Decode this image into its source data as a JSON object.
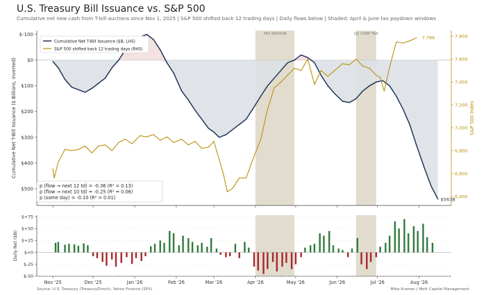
{
  "header": {
    "title": "U.S. Treasury Bill Issuance vs. S&P 500",
    "subtitle": "Cumulative net new cash from T-bill auctions since Nov 1, 2025  |  S&P 500 shifted back 12 trading days  |  Daily flows below  |  Shaded: April & June tax paydown windows"
  },
  "footer": {
    "source": "Source: U.S. Treasury (TreasuryDirect), Yahoo Finance (SPX)",
    "credit": "Mike Kramer  |  Mott Capital Management"
  },
  "colors": {
    "issuance_line": "#1f3557",
    "spx_line": "#b8900a",
    "inflow_bar": "#2f7a3c",
    "outflow_bar": "#a8262a",
    "tax_band": "#ddd6c5",
    "fill_below": "#dde1e6",
    "fill_above": "#f3dfdf"
  },
  "chart_data": [
    {
      "type": "line",
      "title": "",
      "ylabel": "Cumulative Net T-Bill Issuance ($ Billions, inverted)",
      "y2label": "S&P 500 Index",
      "x_ticks": [
        "Nov '25",
        "Dec '25",
        "Jan '26",
        "Feb '26",
        "Mar '26",
        "Apr '26",
        "May '26",
        "Jun '26",
        "Jul '26",
        "Aug '26"
      ],
      "x_tick_dates": [
        "2025-11-01",
        "2025-12-01",
        "2026-01-01",
        "2026-02-01",
        "2026-03-01",
        "2026-04-01",
        "2026-05-01",
        "2026-06-01",
        "2026-07-01",
        "2026-08-01"
      ],
      "xlim": [
        "2025-10-20",
        "2026-08-25"
      ],
      "y_ticks": [
        "$-100",
        "$0",
        "$100",
        "$200",
        "$300",
        "$400",
        "$500"
      ],
      "y_tick_values": [
        -100,
        0,
        100,
        200,
        300,
        400,
        500
      ],
      "ylim": [
        -115,
        565
      ],
      "y_inverted": true,
      "y2_ticks": [
        "6,400",
        "6,600",
        "6,800",
        "7,000",
        "7,200",
        "7,400",
        "7,600",
        "7,800"
      ],
      "y2_tick_values": [
        6400,
        6600,
        6800,
        7000,
        7200,
        7400,
        7600,
        7800
      ],
      "y2lim": [
        6320,
        7850
      ],
      "bands": [
        {
          "label": "TAX SEASON",
          "start": "2026-04-01",
          "end": "2026-04-30"
        },
        {
          "label": "Q2 CORP TAX",
          "start": "2026-06-15",
          "end": "2026-06-30"
        }
      ],
      "legend": {
        "position": "top-left",
        "entries": [
          "Cumulative Net T-Bill Issuance ($B, LHS)",
          "S&P 500 shifted back 12 trading days (RHS)"
        ]
      },
      "series": [
        {
          "name": "Cumulative Net T-Bill Issuance ($B, LHS)",
          "axis": "left",
          "x": [
            "2025-11-01",
            "2025-11-05",
            "2025-11-10",
            "2025-11-15",
            "2025-11-20",
            "2025-11-25",
            "2025-11-30",
            "2025-12-05",
            "2025-12-10",
            "2025-12-15",
            "2025-12-20",
            "2025-12-25",
            "2025-12-30",
            "2026-01-05",
            "2026-01-10",
            "2026-01-15",
            "2026-01-20",
            "2026-01-25",
            "2026-01-30",
            "2026-02-05",
            "2026-02-10",
            "2026-02-15",
            "2026-02-20",
            "2026-02-25",
            "2026-03-01",
            "2026-03-05",
            "2026-03-10",
            "2026-03-15",
            "2026-03-20",
            "2026-03-25",
            "2026-03-30",
            "2026-04-05",
            "2026-04-10",
            "2026-04-15",
            "2026-04-20",
            "2026-04-25",
            "2026-04-30",
            "2026-05-05",
            "2026-05-10",
            "2026-05-15",
            "2026-05-20",
            "2026-05-25",
            "2026-05-30",
            "2026-06-05",
            "2026-06-10",
            "2026-06-15",
            "2026-06-20",
            "2026-06-25",
            "2026-06-30",
            "2026-07-05",
            "2026-07-10",
            "2026-07-15",
            "2026-07-20",
            "2026-07-25",
            "2026-07-30",
            "2026-08-05",
            "2026-08-10",
            "2026-08-15"
          ],
          "values": [
            5,
            30,
            75,
            105,
            115,
            125,
            110,
            90,
            70,
            30,
            0,
            -40,
            -70,
            -90,
            -100,
            -80,
            -40,
            10,
            50,
            120,
            155,
            195,
            230,
            265,
            280,
            300,
            290,
            270,
            250,
            230,
            190,
            140,
            100,
            70,
            40,
            10,
            0,
            -20,
            -10,
            10,
            60,
            100,
            130,
            160,
            165,
            150,
            120,
            100,
            85,
            80,
            100,
            140,
            190,
            250,
            330,
            420,
            490,
            540
          ]
        },
        {
          "name": "S&P 500 shifted back 12 trading days (RHS)",
          "axis": "right",
          "x": [
            "2025-11-01",
            "2025-11-02",
            "2025-11-05",
            "2025-11-10",
            "2025-11-15",
            "2025-11-20",
            "2025-11-25",
            "2025-11-30",
            "2025-12-05",
            "2025-12-10",
            "2025-12-15",
            "2025-12-20",
            "2025-12-25",
            "2025-12-30",
            "2026-01-05",
            "2026-01-10",
            "2026-01-15",
            "2026-01-20",
            "2026-01-25",
            "2026-01-30",
            "2026-02-05",
            "2026-02-10",
            "2026-02-15",
            "2026-02-20",
            "2026-02-25",
            "2026-03-01",
            "2026-03-05",
            "2026-03-08",
            "2026-03-11",
            "2026-03-15",
            "2026-03-20",
            "2026-03-25",
            "2026-03-30",
            "2026-04-05",
            "2026-04-10",
            "2026-04-15",
            "2026-04-20",
            "2026-04-25",
            "2026-04-30",
            "2026-05-05",
            "2026-05-10",
            "2026-05-15",
            "2026-05-20",
            "2026-05-25",
            "2026-05-30",
            "2026-06-05",
            "2026-06-10",
            "2026-06-15",
            "2026-06-20",
            "2026-06-25",
            "2026-06-30",
            "2026-07-03",
            "2026-07-06",
            "2026-07-10",
            "2026-07-15",
            "2026-07-20",
            "2026-07-25",
            "2026-07-30"
          ],
          "values": [
            6640,
            6560,
            6700,
            6810,
            6800,
            6810,
            6840,
            6780,
            6840,
            6850,
            6800,
            6870,
            6900,
            6860,
            6930,
            6920,
            6940,
            6890,
            6920,
            6870,
            6900,
            6850,
            6880,
            6820,
            6830,
            6880,
            6720,
            6600,
            6440,
            6470,
            6560,
            6560,
            6720,
            6900,
            7160,
            7350,
            7400,
            7460,
            7520,
            7500,
            7600,
            7380,
            7500,
            7450,
            7500,
            7560,
            7550,
            7600,
            7540,
            7520,
            7460,
            7440,
            7320,
            7530,
            7750,
            7740,
            7760,
            7786
          ]
        }
      ],
      "annotations": {
        "spx_last": "7,786",
        "issuance_last": "$563B"
      },
      "stats": [
        "p (flow → next 12 td) = -0.36  (R² = 0.13)",
        "p (flow → next 10 td) = -0.25  (R² = 0.06)",
        "p (same day)          = -0.10  (R² = 0.01)"
      ]
    },
    {
      "type": "bar",
      "title": "",
      "ylabel": "Daily Net ($B)",
      "y_ticks": [
        "$+75",
        "$+50",
        "$+25",
        "$+0",
        "$-25",
        "$-50"
      ],
      "y_tick_values": [
        75,
        50,
        25,
        0,
        -25,
        -50
      ],
      "ylim": [
        -50,
        78
      ],
      "grid": true,
      "x": [
        "2025-11-03",
        "2025-11-05",
        "2025-11-10",
        "2025-11-13",
        "2025-11-17",
        "2025-11-20",
        "2025-11-24",
        "2025-11-27",
        "2025-12-01",
        "2025-12-04",
        "2025-12-08",
        "2025-12-11",
        "2025-12-15",
        "2025-12-18",
        "2025-12-22",
        "2025-12-26",
        "2025-12-30",
        "2026-01-02",
        "2026-01-06",
        "2026-01-09",
        "2026-01-13",
        "2026-01-16",
        "2026-01-20",
        "2026-01-23",
        "2026-01-27",
        "2026-01-30",
        "2026-02-03",
        "2026-02-06",
        "2026-02-10",
        "2026-02-13",
        "2026-02-17",
        "2026-02-20",
        "2026-02-24",
        "2026-02-27",
        "2026-03-03",
        "2026-03-06",
        "2026-03-10",
        "2026-03-13",
        "2026-03-17",
        "2026-03-20",
        "2026-03-24",
        "2026-03-27",
        "2026-03-31",
        "2026-04-03",
        "2026-04-07",
        "2026-04-10",
        "2026-04-14",
        "2026-04-17",
        "2026-04-21",
        "2026-04-24",
        "2026-04-28",
        "2026-05-01",
        "2026-05-05",
        "2026-05-08",
        "2026-05-12",
        "2026-05-15",
        "2026-05-19",
        "2026-05-22",
        "2026-05-26",
        "2026-05-29",
        "2026-06-02",
        "2026-06-05",
        "2026-06-09",
        "2026-06-12",
        "2026-06-16",
        "2026-06-19",
        "2026-06-23",
        "2026-06-26",
        "2026-06-30",
        "2026-07-03",
        "2026-07-07",
        "2026-07-10",
        "2026-07-14",
        "2026-07-17",
        "2026-07-21",
        "2026-07-24",
        "2026-07-28",
        "2026-07-31",
        "2026-08-04",
        "2026-08-07",
        "2026-08-11"
      ],
      "values": [
        20,
        22,
        16,
        18,
        17,
        14,
        19,
        15,
        -8,
        -12,
        -20,
        -28,
        -15,
        -30,
        -22,
        -10,
        -24,
        -12,
        -18,
        -8,
        13,
        18,
        25,
        20,
        45,
        40,
        15,
        35,
        30,
        22,
        15,
        20,
        12,
        30,
        8,
        -5,
        -10,
        -8,
        18,
        -12,
        22,
        10,
        -30,
        -38,
        -45,
        -35,
        -20,
        -40,
        -30,
        -22,
        -35,
        -25,
        -10,
        10,
        15,
        18,
        40,
        35,
        45,
        15,
        8,
        5,
        -10,
        8,
        30,
        -25,
        -35,
        -20,
        -10,
        12,
        20,
        35,
        65,
        50,
        70,
        40,
        55,
        45,
        60,
        32,
        20
      ]
    }
  ]
}
